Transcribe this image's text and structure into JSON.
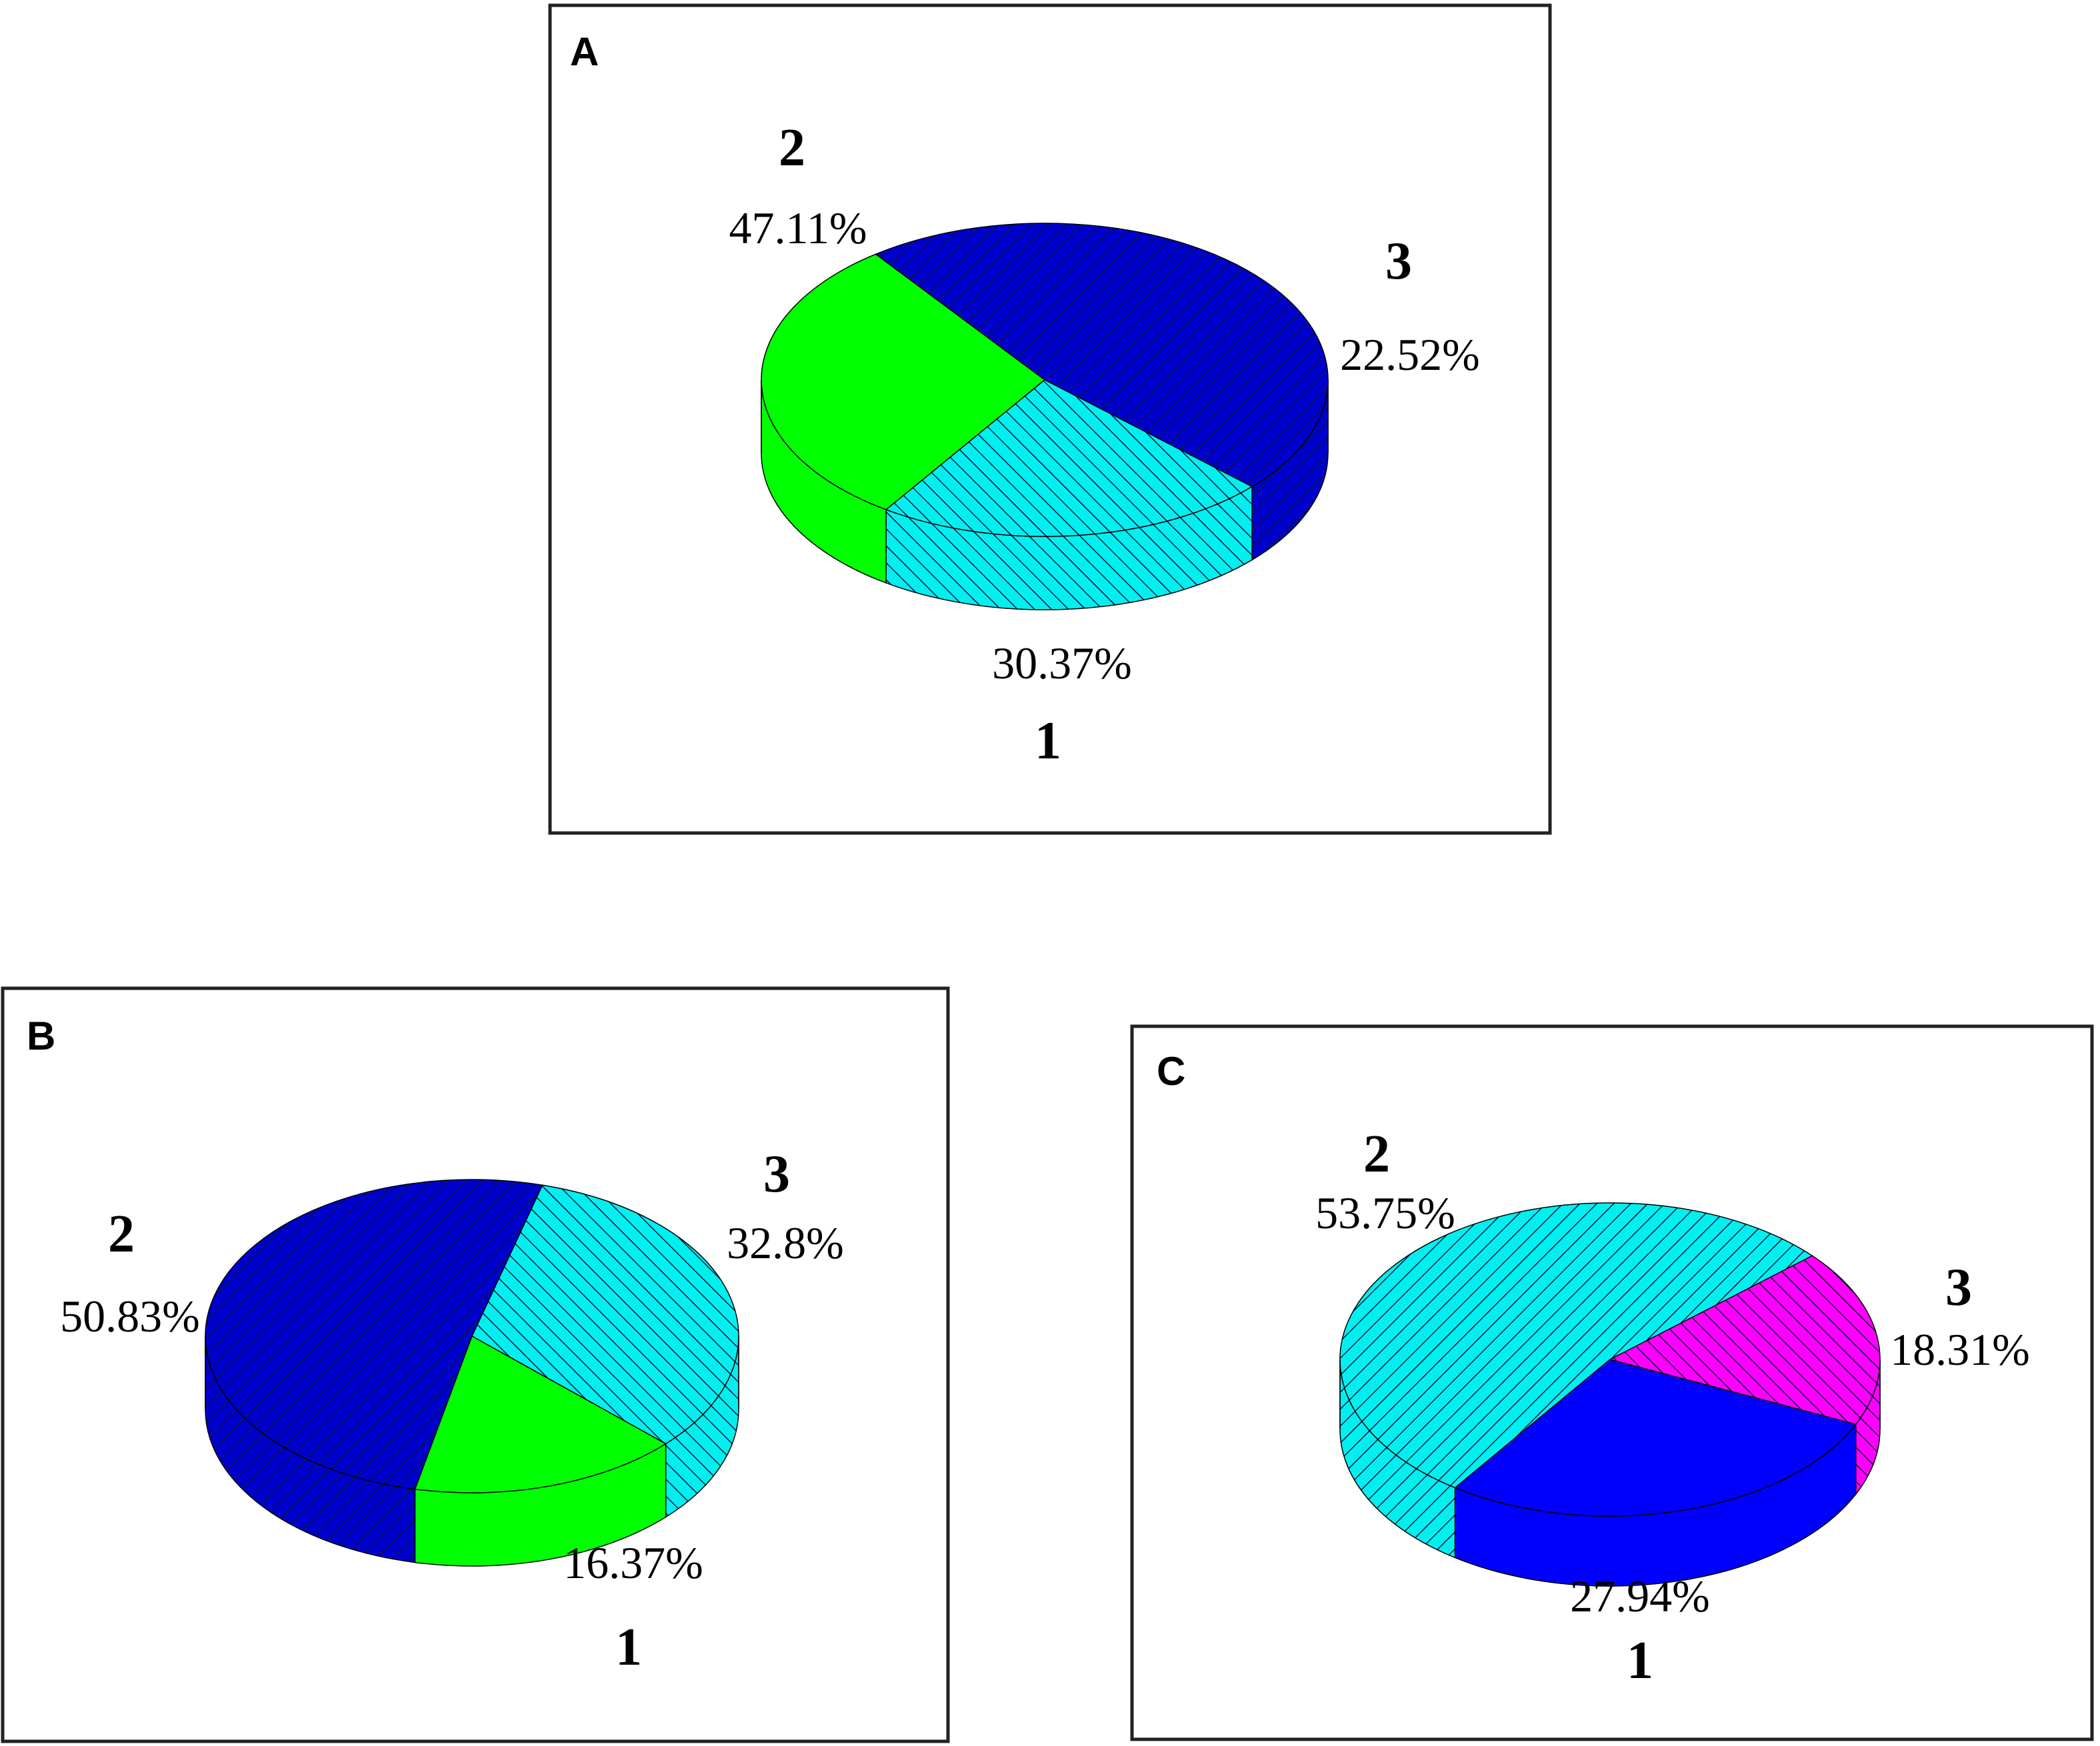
{
  "chart_data": [
    {
      "type": "pie",
      "panel_label": "A",
      "colors": {
        "1": "#00ff00",
        "2": "#0000cc",
        "3": "#00f0f0"
      },
      "hatched": {
        "1": false,
        "2": true,
        "3": true
      },
      "slices": [
        {
          "id": "1",
          "value": 30.37,
          "label": "30.37%"
        },
        {
          "id": "2",
          "value": 47.11,
          "label": "47.11%"
        },
        {
          "id": "3",
          "value": 22.52,
          "label": "22.52%"
        }
      ]
    },
    {
      "type": "pie",
      "panel_label": "B",
      "colors": {
        "1": "#00ff00",
        "2": "#0000cc",
        "3": "#00f0f0"
      },
      "hatched": {
        "1": false,
        "2": true,
        "3": true
      },
      "slices": [
        {
          "id": "1",
          "value": 16.37,
          "label": "16.37%"
        },
        {
          "id": "2",
          "value": 50.83,
          "label": "50.83%"
        },
        {
          "id": "3",
          "value": 32.8,
          "label": "32.8%"
        }
      ]
    },
    {
      "type": "pie",
      "panel_label": "C",
      "colors": {
        "1": "#0000ff",
        "2": "#00f0f0",
        "3": "#ff00ff"
      },
      "hatched": {
        "1": false,
        "2": true,
        "3": true
      },
      "slices": [
        {
          "id": "1",
          "value": 27.94,
          "label": "27.94%"
        },
        {
          "id": "2",
          "value": 53.75,
          "label": "53.75%"
        },
        {
          "id": "3",
          "value": 18.31,
          "label": "18.31%"
        }
      ]
    }
  ]
}
